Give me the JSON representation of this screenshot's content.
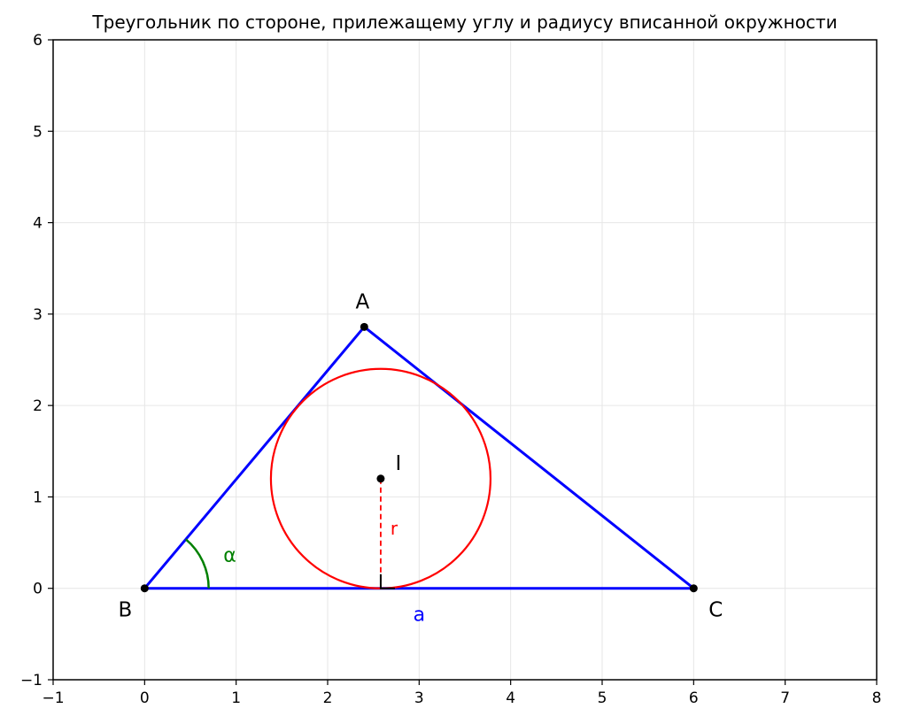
{
  "title": "Треугольник по стороне, прилежащему углу и радиусу вписанной окружности",
  "axes": {
    "xlim": [
      -1,
      8
    ],
    "ylim": [
      -1,
      6
    ],
    "x_ticks": [
      "−1",
      "0",
      "1",
      "2",
      "3",
      "4",
      "5",
      "6",
      "7",
      "8"
    ],
    "y_ticks": [
      "−1",
      "0",
      "1",
      "2",
      "3",
      "4",
      "5",
      "6"
    ],
    "grid": true
  },
  "colors": {
    "triangle": "#0000ff",
    "incircle": "#ff0000",
    "angle_arc": "#008000",
    "grid": "#e6e6e6"
  },
  "geometry": {
    "points": {
      "A": [
        2.4,
        2.86
      ],
      "B": [
        0,
        0
      ],
      "C": [
        6,
        0
      ],
      "I": [
        2.58,
        1.2
      ]
    },
    "inradius": 1.2,
    "tangent_point": [
      2.58,
      0
    ],
    "angle_arc_radius": 0.7
  },
  "labels": {
    "A": "A",
    "B": "B",
    "C": "C",
    "I": "I",
    "r": "r",
    "a": "a",
    "alpha": "α"
  }
}
